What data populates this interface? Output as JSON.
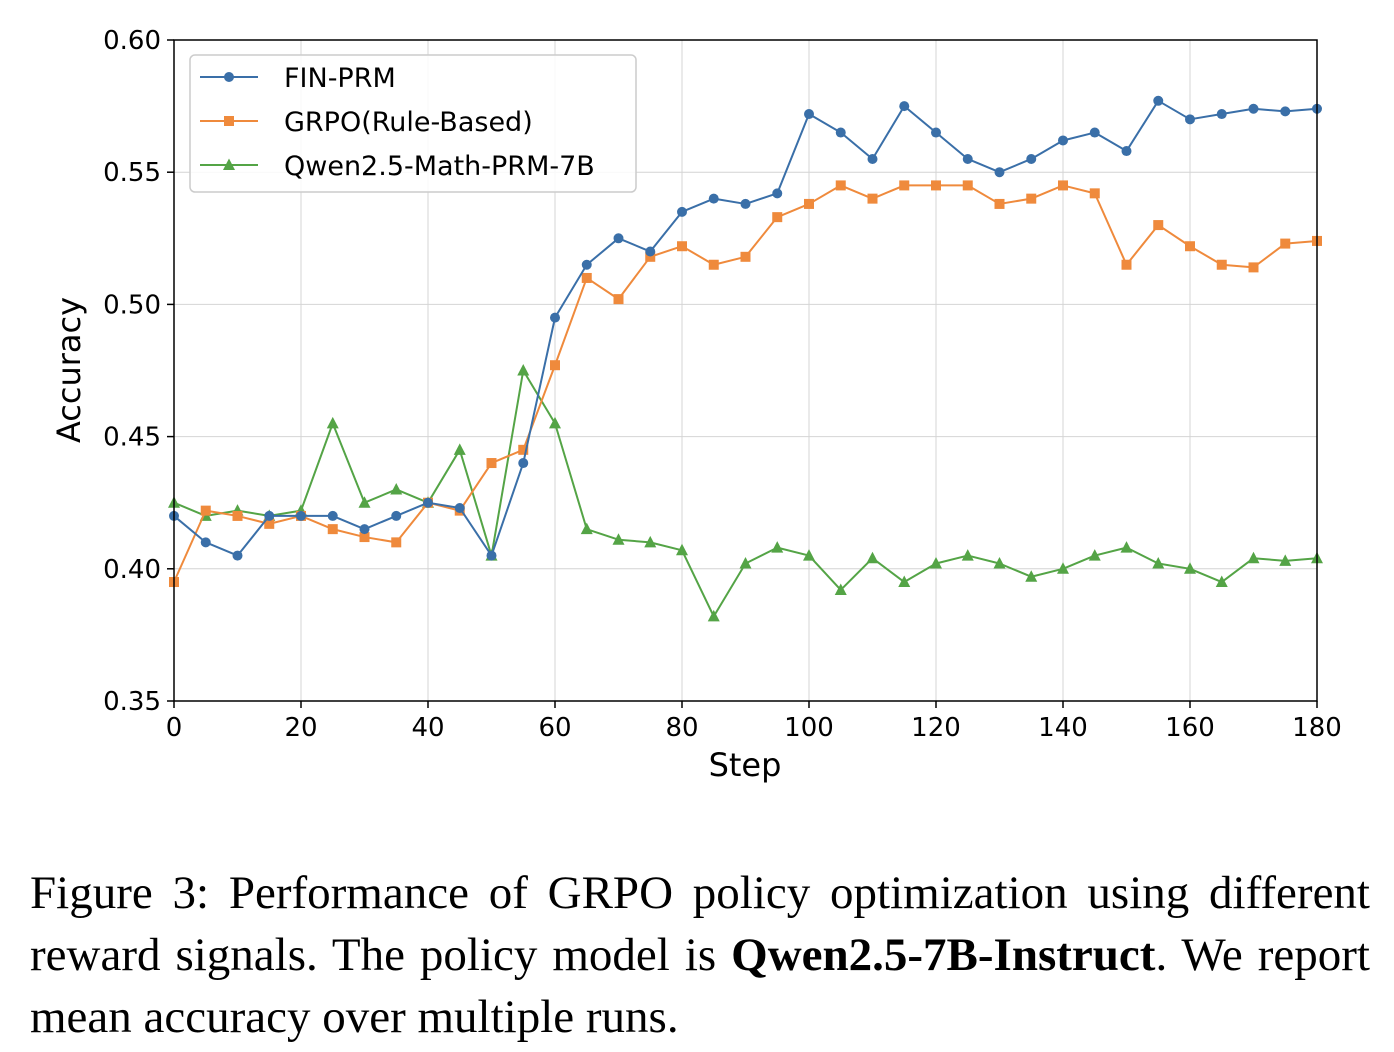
{
  "chart_data": {
    "type": "line",
    "xlabel": "Step",
    "ylabel": "Accuracy",
    "xlim": [
      0,
      180
    ],
    "ylim": [
      0.35,
      0.6
    ],
    "xticks": [
      "0",
      "20",
      "40",
      "60",
      "80",
      "100",
      "120",
      "140",
      "160",
      "180"
    ],
    "yticks": [
      "0.35",
      "0.40",
      "0.45",
      "0.50",
      "0.55",
      "0.60"
    ],
    "grid": true,
    "legend_position": "top-left",
    "x": [
      0,
      5,
      10,
      15,
      20,
      25,
      30,
      35,
      40,
      45,
      50,
      55,
      60,
      65,
      70,
      75,
      80,
      85,
      90,
      95,
      100,
      105,
      110,
      115,
      120,
      125,
      130,
      135,
      140,
      145,
      150,
      155,
      160,
      165,
      170,
      175,
      180
    ],
    "series": [
      {
        "name": "FIN-PRM",
        "color": "#3a6fa8",
        "marker": "circle",
        "values": [
          0.42,
          0.41,
          0.405,
          0.42,
          0.42,
          0.42,
          0.415,
          0.42,
          0.425,
          0.423,
          0.405,
          0.44,
          0.495,
          0.515,
          0.525,
          0.52,
          0.535,
          0.54,
          0.538,
          0.542,
          0.572,
          0.565,
          0.555,
          0.575,
          0.565,
          0.555,
          0.55,
          0.555,
          0.562,
          0.565,
          0.558,
          0.577,
          0.57,
          0.572,
          0.574,
          0.573,
          0.574
        ]
      },
      {
        "name": "GRPO(Rule-Based)",
        "color": "#ef8a3c",
        "marker": "square",
        "values": [
          0.395,
          0.422,
          0.42,
          0.417,
          0.42,
          0.415,
          0.412,
          0.41,
          0.425,
          0.422,
          0.44,
          0.445,
          0.477,
          0.51,
          0.502,
          0.518,
          0.522,
          0.515,
          0.518,
          0.533,
          0.538,
          0.545,
          0.54,
          0.545,
          0.545,
          0.545,
          0.538,
          0.54,
          0.545,
          0.542,
          0.515,
          0.53,
          0.522,
          0.515,
          0.514,
          0.523,
          0.524
        ]
      },
      {
        "name": "Qwen2.5-Math-PRM-7B",
        "color": "#54a446",
        "marker": "triangle",
        "values": [
          0.425,
          0.42,
          0.422,
          0.42,
          0.422,
          0.455,
          0.425,
          0.43,
          0.425,
          0.445,
          0.405,
          0.475,
          0.455,
          0.415,
          0.411,
          0.41,
          0.407,
          0.382,
          0.402,
          0.408,
          0.405,
          0.392,
          0.404,
          0.395,
          0.402,
          0.405,
          0.402,
          0.397,
          0.4,
          0.405,
          0.408,
          0.402,
          0.4,
          0.395,
          0.404,
          0.403,
          0.404
        ]
      }
    ]
  },
  "caption": {
    "part1": "Figure 3: Performance of GRPO policy optimization using different reward signals. The policy model is ",
    "bold1": "Qwen2.5-7B-Instruct",
    "part2": ". We report mean accuracy over multiple runs."
  }
}
